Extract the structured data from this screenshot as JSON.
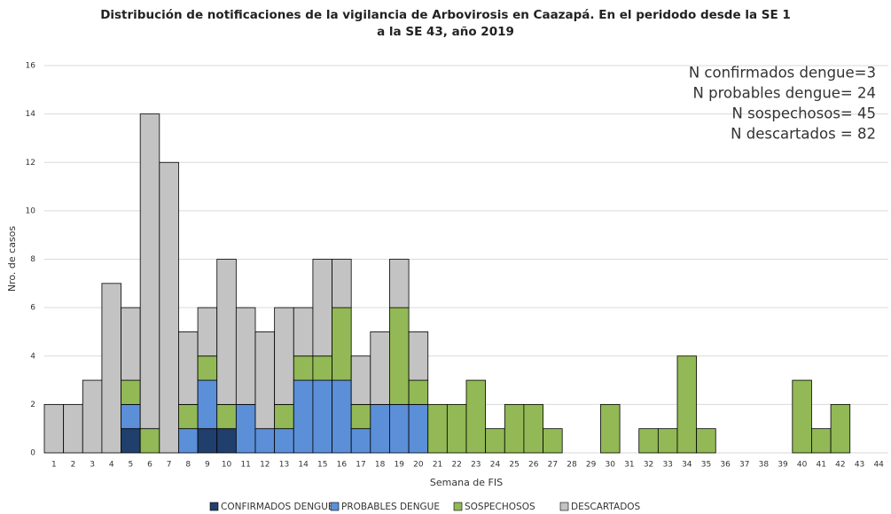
{
  "chart_data": {
    "type": "stacked_bar",
    "title": "Distribución de notificaciones de la vigilancia de Arbovirosis en Caazapá. En el peridodo desde la SE 1 a la SE 43, año 2019",
    "xlabel": "Semana de FIS",
    "ylabel": "Nro. de casos",
    "annotations": [
      "N confirmados dengue=3",
      "N probables dengue=  24",
      "N sospechosos=  45",
      "N descartados =  82"
    ],
    "categories": [
      "1",
      "2",
      "3",
      "4",
      "5",
      "6",
      "7",
      "8",
      "9",
      "10",
      "11",
      "12",
      "13",
      "14",
      "15",
      "16",
      "17",
      "18",
      "19",
      "20",
      "21",
      "22",
      "23",
      "24",
      "25",
      "26",
      "27",
      "28",
      "29",
      "30",
      "31",
      "32",
      "33",
      "34",
      "35",
      "36",
      "37",
      "38",
      "39",
      "40",
      "41",
      "42",
      "43",
      "44"
    ],
    "series": [
      {
        "name": "CONFIRMADOS DENGUE",
        "color": "#203f6c",
        "values": [
          0,
          0,
          0,
          0,
          1,
          0,
          0,
          0,
          1,
          1,
          0,
          0,
          0,
          0,
          0,
          0,
          0,
          0,
          0,
          0,
          0,
          0,
          0,
          0,
          0,
          0,
          0,
          0,
          0,
          0,
          0,
          0,
          0,
          0,
          0,
          0,
          0,
          0,
          0,
          0,
          0,
          0,
          0,
          0
        ]
      },
      {
        "name": "PROBABLES DENGUE",
        "color": "#5b8fd8",
        "values": [
          0,
          0,
          0,
          0,
          1,
          0,
          0,
          1,
          2,
          0,
          2,
          1,
          1,
          3,
          3,
          3,
          1,
          2,
          2,
          2,
          0,
          0,
          0,
          0,
          0,
          0,
          0,
          0,
          0,
          0,
          0,
          0,
          0,
          0,
          0,
          0,
          0,
          0,
          0,
          0,
          0,
          0,
          0,
          0
        ]
      },
      {
        "name": "SOSPECHOSOS",
        "color": "#92b955",
        "values": [
          0,
          0,
          0,
          0,
          1,
          1,
          0,
          1,
          1,
          1,
          0,
          0,
          1,
          1,
          1,
          3,
          1,
          0,
          4,
          1,
          2,
          2,
          3,
          1,
          2,
          2,
          1,
          0,
          0,
          2,
          0,
          1,
          1,
          4,
          1,
          0,
          0,
          0,
          0,
          3,
          1,
          2,
          0,
          0
        ]
      },
      {
        "name": "DESCARTADOS",
        "color": "#c3c3c3",
        "values": [
          2,
          2,
          3,
          7,
          3,
          13,
          12,
          3,
          2,
          6,
          4,
          4,
          4,
          2,
          4,
          2,
          2,
          3,
          2,
          2,
          0,
          0,
          0,
          0,
          0,
          0,
          0,
          0,
          0,
          0,
          0,
          0,
          0,
          0,
          0,
          0,
          0,
          0,
          0,
          0,
          0,
          0,
          0,
          0
        ]
      }
    ],
    "ylim": [
      0,
      16
    ],
    "yticks": [
      0,
      2,
      4,
      6,
      8,
      10,
      12,
      14,
      16
    ],
    "grid": true
  }
}
